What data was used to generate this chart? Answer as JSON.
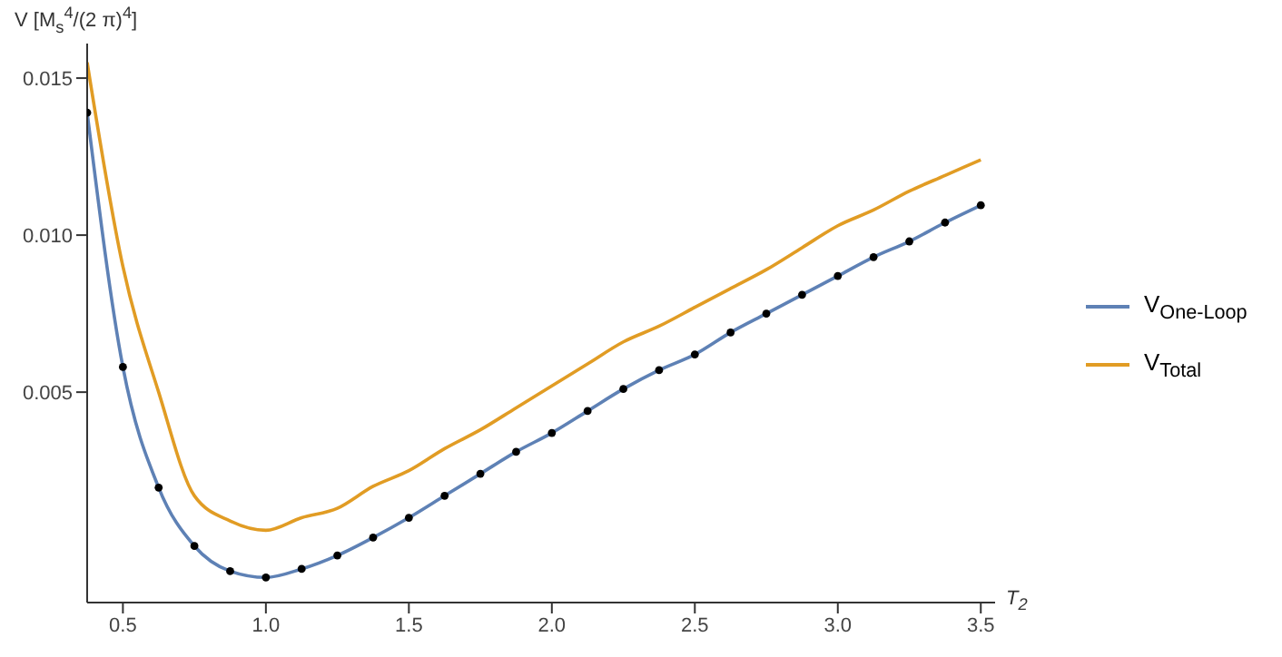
{
  "chart_data": {
    "type": "line",
    "xlabel": "T$_{2}$",
    "ylabel": "V [M$_{s}$$^{4}$/(2 π)$^{4}$]",
    "legend": "right",
    "x": [
      0.375,
      0.5,
      0.625,
      0.75,
      0.875,
      1.0,
      1.125,
      1.25,
      1.375,
      1.5,
      1.625,
      1.75,
      1.875,
      2.0,
      2.125,
      2.25,
      2.375,
      2.5,
      2.625,
      2.75,
      2.875,
      3.0,
      3.125,
      3.25,
      3.375,
      3.5
    ],
    "xlim": [
      0.375,
      3.55
    ],
    "ylim": [
      -0.0017,
      0.0161
    ],
    "xticks": [
      0.5,
      {
        "value": 1.0,
        "label": "1.0"
      },
      1.5,
      {
        "value": 2.0,
        "label": "2.0"
      },
      2.5,
      {
        "value": 3.0,
        "label": "3.0"
      },
      3.5
    ],
    "yticks": [
      {
        "value": 0.005,
        "label": "0.005"
      },
      {
        "value": 0.01,
        "label": "0.010"
      },
      {
        "value": 0.015,
        "label": "0.015"
      }
    ],
    "series": [
      {
        "name": "V$_{One-Loop}$",
        "color": "#5e81b5",
        "values": [
          0.0139,
          0.0058,
          0.00196,
          0.0001,
          -0.0007,
          -0.0009,
          -0.00063,
          -0.0002,
          0.00037,
          0.001,
          0.0017,
          0.0024,
          0.0031,
          0.0037,
          0.0044,
          0.0051,
          0.0057,
          0.0062,
          0.0069,
          0.0075,
          0.0081,
          0.0087,
          0.0093,
          0.0098,
          0.0104,
          0.01095
        ]
      },
      {
        "name": "V$_{Total}$",
        "color": "#e19c24",
        "values": [
          0.0155,
          0.009,
          0.005,
          0.0017,
          0.0009,
          0.0006,
          0.001,
          0.0013,
          0.002,
          0.0025,
          0.0032,
          0.0038,
          0.0045,
          0.0052,
          0.0059,
          0.0066,
          0.0071,
          0.0077,
          0.0083,
          0.0089,
          0.0096,
          0.0103,
          0.0108,
          0.0114,
          0.0119,
          0.0124
        ]
      },
      {
        "type": "scatter",
        "color": "#000000",
        "values": [
          0.0139,
          0.0058,
          0.00196,
          0.0001,
          -0.0007,
          -0.0009,
          -0.00063,
          -0.0002,
          0.00037,
          0.001,
          0.0017,
          0.0024,
          0.0031,
          0.0037,
          0.0044,
          0.0051,
          0.0057,
          0.0062,
          0.0069,
          0.0075,
          0.0081,
          0.0087,
          0.0093,
          0.0098,
          0.0104,
          0.01095
        ]
      }
    ]
  }
}
